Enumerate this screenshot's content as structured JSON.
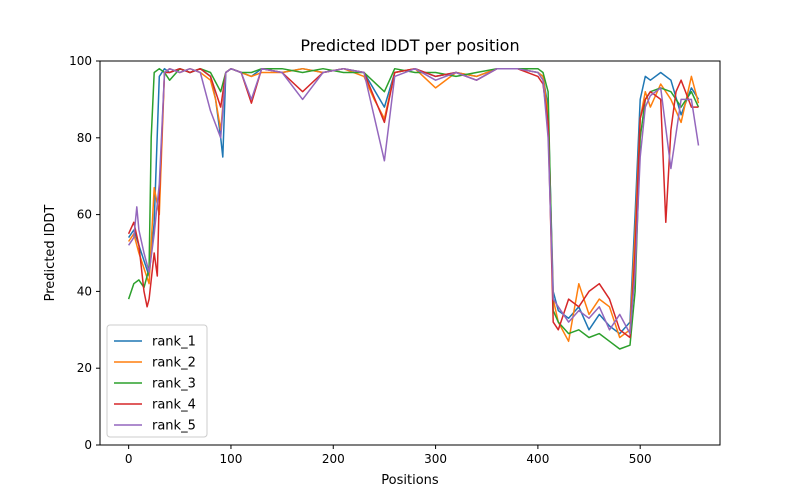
{
  "chart_data": {
    "type": "line",
    "title": "Predicted lDDT per position",
    "xlabel": "Positions",
    "ylabel": "Predicted lDDT",
    "xlim": [
      -28,
      578
    ],
    "ylim": [
      0,
      100
    ],
    "xticks": [
      0,
      100,
      200,
      300,
      400,
      500
    ],
    "yticks": [
      0,
      20,
      40,
      60,
      80,
      100
    ],
    "grid": false,
    "legend_position": "lower-left",
    "series": [
      {
        "name": "rank_1",
        "color": "#1f77b4",
        "x": [
          0,
          5,
          10,
          15,
          20,
          25,
          30,
          35,
          40,
          50,
          60,
          70,
          80,
          85,
          90,
          92,
          95,
          100,
          110,
          120,
          130,
          150,
          170,
          190,
          210,
          230,
          250,
          260,
          280,
          300,
          320,
          340,
          360,
          380,
          400,
          405,
          410,
          415,
          420,
          430,
          440,
          450,
          460,
          470,
          480,
          490,
          495,
          500,
          505,
          510,
          520,
          530,
          540,
          550,
          557
        ],
        "values": [
          54,
          56,
          52,
          48,
          44,
          58,
          96,
          98,
          97,
          98,
          97,
          98,
          96,
          90,
          80,
          75,
          97,
          98,
          97,
          96,
          98,
          97,
          98,
          97,
          98,
          97,
          88,
          97,
          98,
          96,
          97,
          96,
          98,
          98,
          97,
          96,
          88,
          40,
          35,
          33,
          36,
          30,
          34,
          31,
          29,
          32,
          60,
          90,
          96,
          95,
          97,
          95,
          86,
          93,
          90
        ]
      },
      {
        "name": "rank_2",
        "color": "#ff7f0e",
        "x": [
          0,
          5,
          10,
          15,
          20,
          25,
          30,
          35,
          40,
          50,
          60,
          70,
          80,
          85,
          90,
          95,
          100,
          110,
          120,
          130,
          150,
          170,
          190,
          210,
          230,
          240,
          250,
          260,
          280,
          300,
          320,
          340,
          360,
          380,
          400,
          405,
          410,
          415,
          420,
          430,
          440,
          450,
          460,
          470,
          480,
          490,
          495,
          500,
          505,
          510,
          520,
          530,
          540,
          550,
          557
        ],
        "values": [
          53,
          55,
          50,
          46,
          42,
          67,
          60,
          97,
          98,
          97,
          98,
          97,
          95,
          90,
          82,
          97,
          98,
          97,
          96,
          97,
          97,
          98,
          97,
          98,
          96,
          90,
          85,
          97,
          98,
          93,
          97,
          96,
          98,
          98,
          97,
          96,
          86,
          38,
          32,
          27,
          42,
          34,
          38,
          36,
          28,
          30,
          55,
          85,
          92,
          88,
          94,
          90,
          84,
          96,
          89
        ]
      },
      {
        "name": "rank_3",
        "color": "#2ca02c",
        "x": [
          0,
          5,
          10,
          15,
          20,
          22,
          25,
          30,
          35,
          40,
          50,
          60,
          70,
          80,
          90,
          95,
          100,
          110,
          120,
          130,
          150,
          170,
          190,
          210,
          230,
          250,
          260,
          280,
          300,
          320,
          340,
          360,
          380,
          400,
          405,
          410,
          415,
          420,
          430,
          440,
          450,
          460,
          470,
          480,
          490,
          495,
          500,
          505,
          510,
          520,
          530,
          540,
          550,
          557
        ],
        "values": [
          38,
          42,
          43,
          41,
          46,
          80,
          97,
          98,
          97,
          95,
          98,
          97,
          98,
          97,
          92,
          97,
          98,
          97,
          97,
          98,
          98,
          97,
          98,
          97,
          97,
          92,
          98,
          97,
          97,
          96,
          97,
          98,
          98,
          98,
          97,
          92,
          35,
          32,
          29,
          30,
          28,
          29,
          27,
          25,
          26,
          40,
          80,
          90,
          92,
          93,
          92,
          88,
          92,
          88
        ]
      },
      {
        "name": "rank_4",
        "color": "#d62728",
        "x": [
          0,
          5,
          10,
          15,
          18,
          20,
          25,
          28,
          30,
          35,
          40,
          50,
          60,
          70,
          80,
          90,
          95,
          100,
          110,
          120,
          130,
          150,
          170,
          190,
          210,
          230,
          250,
          260,
          280,
          300,
          320,
          340,
          360,
          380,
          400,
          405,
          410,
          415,
          420,
          430,
          440,
          450,
          460,
          470,
          480,
          490,
          495,
          500,
          505,
          510,
          520,
          525,
          530,
          535,
          540,
          550,
          557
        ],
        "values": [
          55,
          58,
          52,
          40,
          36,
          38,
          50,
          44,
          65,
          97,
          97,
          98,
          97,
          98,
          96,
          88,
          97,
          98,
          97,
          89,
          98,
          97,
          92,
          97,
          98,
          97,
          84,
          97,
          98,
          96,
          97,
          95,
          98,
          98,
          96,
          94,
          84,
          32,
          30,
          38,
          36,
          40,
          42,
          38,
          30,
          28,
          50,
          85,
          90,
          92,
          90,
          58,
          82,
          92,
          95,
          88,
          88
        ]
      },
      {
        "name": "rank_5",
        "color": "#9467bd",
        "x": [
          0,
          5,
          8,
          10,
          15,
          20,
          25,
          30,
          35,
          40,
          50,
          60,
          70,
          80,
          90,
          95,
          100,
          110,
          120,
          130,
          150,
          170,
          190,
          210,
          230,
          250,
          260,
          280,
          300,
          320,
          340,
          360,
          380,
          400,
          405,
          410,
          415,
          420,
          430,
          440,
          450,
          460,
          470,
          480,
          490,
          495,
          500,
          505,
          510,
          520,
          530,
          540,
          550,
          557
        ],
        "values": [
          52,
          54,
          62,
          56,
          50,
          45,
          55,
          68,
          97,
          98,
          97,
          98,
          97,
          87,
          80,
          97,
          98,
          97,
          90,
          98,
          97,
          90,
          97,
          98,
          97,
          74,
          96,
          98,
          95,
          97,
          95,
          98,
          98,
          97,
          95,
          80,
          38,
          36,
          32,
          35,
          33,
          36,
          30,
          34,
          29,
          45,
          75,
          88,
          91,
          93,
          72,
          90,
          90,
          78
        ]
      }
    ]
  }
}
